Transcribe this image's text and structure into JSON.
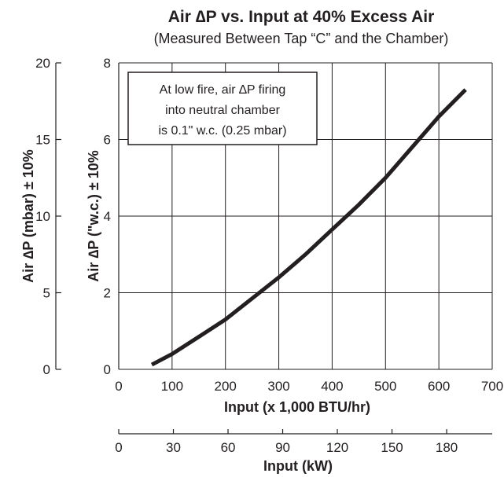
{
  "chart_data": {
    "type": "line",
    "title": "Air ∆P vs. Input at 40% Excess Air",
    "subtitle": "(Measured Between Tap “C” and the Chamber)",
    "xlabel": "Input (x 1,000 BTU/hr)",
    "xlabel_secondary": "Input (kW)",
    "ylabel": "Air ∆P (\"w.c.) ± 10%",
    "ylabel_secondary": "Air ∆P (mbar) ± 10%",
    "xlim": [
      0,
      700
    ],
    "ylim": [
      0,
      8
    ],
    "xlim_secondary": [
      0,
      205
    ],
    "ylim_secondary": [
      0,
      20
    ],
    "x_ticks": [
      "0",
      "100",
      "200",
      "300",
      "400",
      "500",
      "600",
      "700"
    ],
    "x_ticks_secondary": [
      "0",
      "30",
      "60",
      "90",
      "120",
      "150",
      "180"
    ],
    "y_ticks": [
      "0",
      "2",
      "4",
      "6",
      "8"
    ],
    "y_ticks_secondary": [
      "0",
      "5",
      "10",
      "15",
      "20"
    ],
    "grid": true,
    "annotation": [
      "At low fire, air ∆P firing",
      "into neutral chamber",
      "is 0.1\" w.c. (0.25 mbar)"
    ],
    "series": [
      {
        "x": [
          62,
          100,
          150,
          200,
          250,
          300,
          350,
          400,
          450,
          500,
          550,
          600,
          650
        ],
        "y": [
          0.12,
          0.4,
          0.85,
          1.3,
          1.85,
          2.4,
          3.0,
          3.65,
          4.3,
          5.0,
          5.8,
          6.6,
          7.3
        ]
      }
    ],
    "line_color": "#231f20"
  }
}
